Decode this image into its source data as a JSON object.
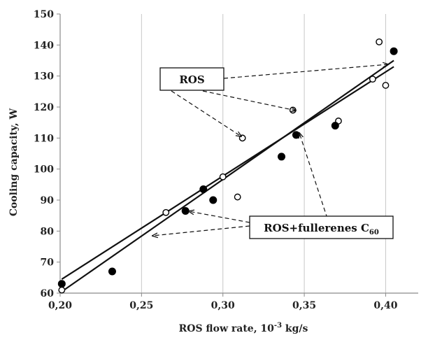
{
  "chart_data": {
    "type": "scatter",
    "xlabel_main": "ROS flow rate, 10",
    "xlabel_sup": "-3",
    "xlabel_tail": " kg/s",
    "ylabel": "Cooling  capacity,  W",
    "xlim": [
      0.2,
      0.42
    ],
    "ylim": [
      60,
      150
    ],
    "x_ticks": [
      0.2,
      0.25,
      0.3,
      0.35,
      0.4
    ],
    "x_tick_labels": [
      "0,20",
      "0,25",
      "0,30",
      "0,35",
      "0,40"
    ],
    "y_ticks": [
      60,
      70,
      80,
      90,
      100,
      110,
      120,
      130,
      140,
      150
    ],
    "y_tick_labels": [
      "60",
      "70",
      "80",
      "90",
      "100",
      "110",
      "120",
      "130",
      "140",
      "150"
    ],
    "grid": "vertical",
    "series": [
      {
        "name": "ROS",
        "marker": "open-circle",
        "points": [
          [
            0.201,
            61
          ],
          [
            0.265,
            86
          ],
          [
            0.3,
            97.5
          ],
          [
            0.309,
            91
          ],
          [
            0.312,
            110
          ],
          [
            0.343,
            119
          ],
          [
            0.371,
            115.5
          ],
          [
            0.392,
            129
          ],
          [
            0.396,
            141
          ],
          [
            0.4,
            127
          ]
        ],
        "fit": [
          [
            0.201,
            60.5
          ],
          [
            0.405,
            135
          ]
        ]
      },
      {
        "name": "ROS+fullerenes C60",
        "marker": "filled-circle",
        "points": [
          [
            0.201,
            63
          ],
          [
            0.232,
            67
          ],
          [
            0.277,
            86.5
          ],
          [
            0.288,
            93.5
          ],
          [
            0.294,
            90
          ],
          [
            0.336,
            104
          ],
          [
            0.345,
            111
          ],
          [
            0.369,
            114
          ],
          [
            0.405,
            138
          ]
        ],
        "fit": [
          [
            0.201,
            64.5
          ],
          [
            0.405,
            133
          ]
        ]
      }
    ],
    "annotations": {
      "ros_label": "ROS",
      "fullerene_label_main": "ROS+fullerenes C",
      "fullerene_label_sub": "60"
    },
    "colors": {
      "axis": "#8a8a8a",
      "grid": "#c8c8c8",
      "marker": "#000000",
      "line": "#111111"
    }
  }
}
